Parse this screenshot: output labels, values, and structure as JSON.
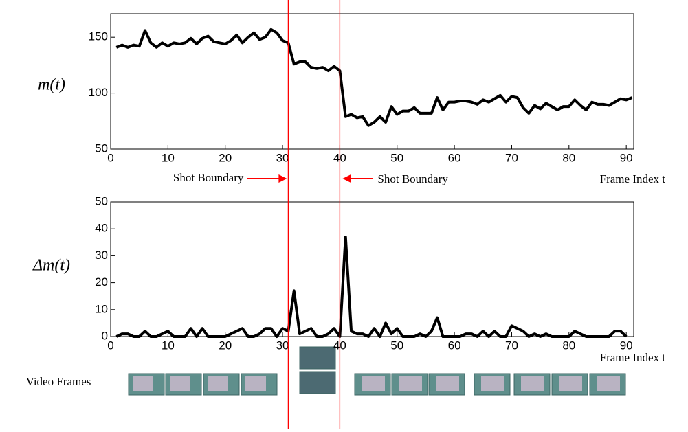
{
  "chart_data": [
    {
      "type": "line",
      "ylabel": "m(t)",
      "xlabel": "Frame Index t",
      "color": "#000000",
      "xlim": [
        0,
        91.3
      ],
      "ylim": [
        50,
        171
      ],
      "xticks": [
        0,
        10,
        20,
        30,
        40,
        50,
        60,
        70,
        80,
        90
      ],
      "yticks": [
        50,
        100,
        150
      ],
      "x": [
        1,
        2,
        3,
        4,
        5,
        6,
        7,
        8,
        9,
        10,
        11,
        12,
        13,
        14,
        15,
        16,
        17,
        18,
        19,
        20,
        21,
        22,
        23,
        24,
        25,
        26,
        27,
        28,
        29,
        30,
        31,
        32,
        33,
        34,
        35,
        36,
        37,
        38,
        39,
        40,
        41,
        42,
        43,
        44,
        45,
        46,
        47,
        48,
        49,
        50,
        51,
        52,
        53,
        54,
        55,
        56,
        57,
        58,
        59,
        60,
        61,
        62,
        63,
        64,
        65,
        66,
        67,
        68,
        69,
        70,
        71,
        72,
        73,
        74,
        75,
        76,
        77,
        78,
        79,
        80,
        81,
        82,
        83,
        84,
        85,
        86,
        87,
        88,
        89,
        90,
        91
      ],
      "values": [
        141,
        143,
        141,
        143,
        142,
        156,
        145,
        141,
        145,
        142,
        145,
        144,
        145,
        149,
        144,
        149,
        151,
        146,
        145,
        144,
        147,
        152,
        145,
        150,
        154,
        148,
        150,
        157,
        154,
        147,
        145,
        126,
        128,
        128,
        123,
        122,
        123,
        120,
        124,
        120,
        79,
        81,
        78,
        79,
        71,
        74,
        79,
        74,
        88,
        81,
        84,
        84,
        87,
        82,
        82,
        82,
        96,
        85,
        92,
        92,
        93,
        93,
        92,
        90,
        94,
        92,
        95,
        98,
        92,
        97,
        96,
        87,
        82,
        89,
        86,
        91,
        88,
        85,
        88,
        88,
        94,
        89,
        85,
        92,
        90,
        90,
        89,
        92,
        95,
        94,
        96
      ],
      "boundary_color": "#ff0000",
      "annotations": [
        {
          "text": "Shot Boundary",
          "x": 31
        },
        {
          "text": "Shot Boundary",
          "x": 40
        }
      ]
    },
    {
      "type": "line",
      "ylabel": "Δm(t)",
      "xlabel": "Frame Index t",
      "color": "#000000",
      "xlim": [
        0,
        91.3
      ],
      "ylim": [
        0,
        50
      ],
      "xticks": [
        0,
        10,
        20,
        30,
        40,
        50,
        60,
        70,
        80,
        90
      ],
      "yticks": [
        0,
        10,
        20,
        30,
        40,
        50
      ],
      "x": [
        1,
        2,
        3,
        4,
        5,
        6,
        7,
        8,
        9,
        10,
        11,
        12,
        13,
        14,
        15,
        16,
        17,
        18,
        19,
        20,
        21,
        22,
        23,
        24,
        25,
        26,
        27,
        28,
        29,
        30,
        31,
        32,
        33,
        34,
        35,
        36,
        37,
        38,
        39,
        40,
        41,
        42,
        43,
        44,
        45,
        46,
        47,
        48,
        49,
        50,
        51,
        52,
        53,
        54,
        55,
        56,
        57,
        58,
        59,
        60,
        61,
        62,
        63,
        64,
        65,
        66,
        67,
        68,
        69,
        70,
        71,
        72,
        73,
        74,
        75,
        76,
        77,
        78,
        79,
        80,
        81,
        82,
        83,
        84,
        85,
        86,
        87,
        88,
        89,
        90
      ],
      "values": [
        0,
        1,
        1,
        0,
        0,
        2,
        0,
        0,
        1,
        2,
        0,
        0,
        0,
        3,
        0,
        3,
        0,
        0,
        0,
        0,
        1,
        2,
        3,
        0,
        0,
        1,
        3,
        3,
        0,
        3,
        2,
        17,
        1,
        2,
        3,
        0,
        0,
        1,
        3,
        0,
        37,
        2,
        1,
        1,
        0,
        3,
        0,
        5,
        1,
        3,
        0,
        0,
        0,
        1,
        0,
        2,
        7,
        0,
        0,
        0,
        0,
        1,
        1,
        0,
        2,
        0,
        2,
        0,
        0,
        4,
        3,
        2,
        0,
        1,
        0,
        1,
        0,
        0,
        0,
        0,
        2,
        1,
        0,
        0,
        0,
        0,
        0,
        2,
        2,
        0
      ]
    }
  ],
  "video_frames": {
    "label": "Video Frames"
  }
}
